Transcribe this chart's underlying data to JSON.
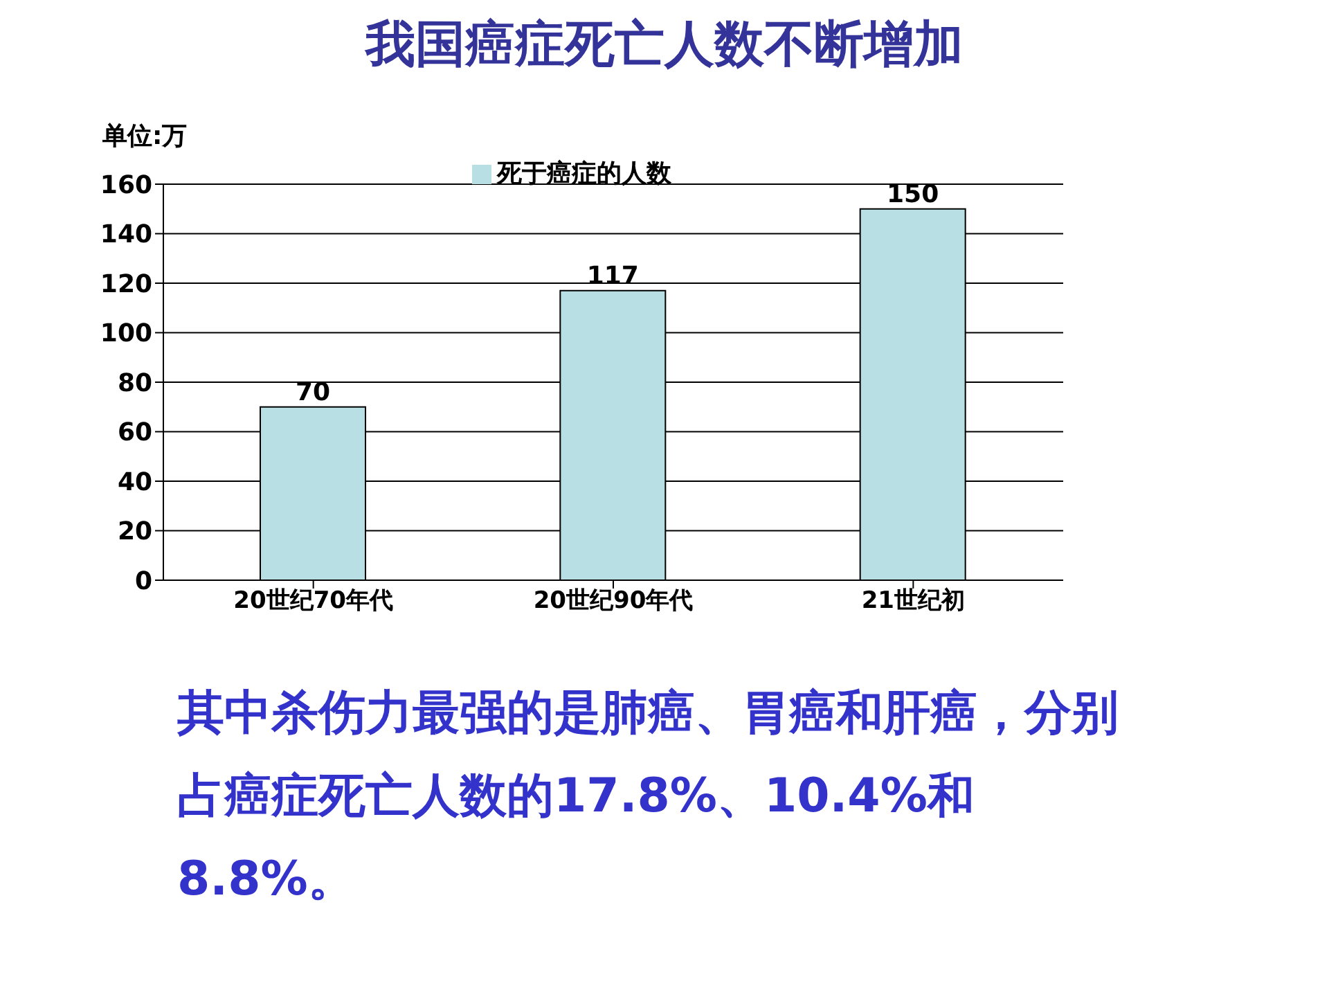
{
  "chart_data": {
    "type": "bar",
    "title": "我国癌症死亡人数不断增加",
    "ylabel": "单位:万",
    "categories": [
      "20世纪70年代",
      "20世纪90年代",
      "21世纪初"
    ],
    "series": [
      {
        "name": "死于癌症的人数",
        "color": "#b8dfe3",
        "values": [
          70,
          117,
          150
        ]
      }
    ],
    "ylim": [
      0,
      160
    ],
    "yticks": [
      0,
      20,
      40,
      60,
      80,
      100,
      120,
      140,
      160
    ],
    "grid": "y",
    "legend": "top",
    "data_labels": true,
    "annotations": [
      "其中杀伤力最强的是肺癌、胃癌和肝癌，分别占癌症死亡人数的17.8%、10.4%和8.8%。"
    ]
  }
}
